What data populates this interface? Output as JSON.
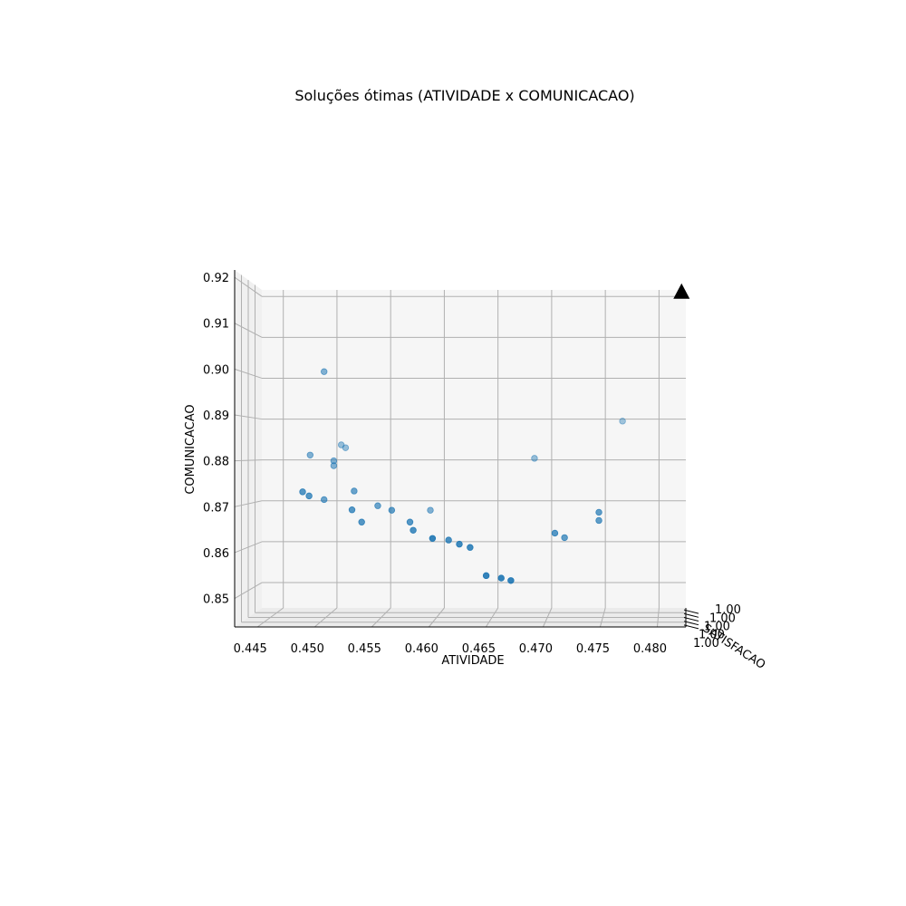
{
  "chart_data": {
    "type": "scatter",
    "projection": "3d",
    "title": "Soluções ótimas (ATIVIDADE x COMUNICACAO)",
    "xlabel": "ATIVIDADE",
    "ylabel": "COMUNICACAO",
    "zlabel": "SATISFACAO",
    "xlim": [
      0.443,
      0.4825
    ],
    "ylim": [
      0.8438,
      0.9216
    ],
    "x_ticks": [
      "0.445",
      "0.450",
      "0.455",
      "0.460",
      "0.465",
      "0.470",
      "0.475",
      "0.480"
    ],
    "y_ticks": [
      "0.85",
      "0.86",
      "0.87",
      "0.88",
      "0.89",
      "0.90",
      "0.91",
      "0.92"
    ],
    "z_ticks": [
      "1.00",
      "1.00",
      "1.00",
      "1.00",
      "1.00"
    ],
    "grid": true,
    "point_color": "#1f77b4",
    "marker_color": "#000000",
    "marker": {
      "x": 0.4821,
      "y": 0.9212,
      "shape": "triangle"
    },
    "points": [
      {
        "x": 0.4488,
        "y": 0.9016,
        "depth": 0.55
      },
      {
        "x": 0.4475,
        "y": 0.8812,
        "depth": 0.55
      },
      {
        "x": 0.4468,
        "y": 0.8722,
        "depth": 0.75
      },
      {
        "x": 0.4474,
        "y": 0.8712,
        "depth": 0.75
      },
      {
        "x": 0.4488,
        "y": 0.8703,
        "depth": 0.65
      },
      {
        "x": 0.4504,
        "y": 0.8837,
        "depth": 0.45
      },
      {
        "x": 0.4508,
        "y": 0.883,
        "depth": 0.45
      },
      {
        "x": 0.4497,
        "y": 0.8798,
        "depth": 0.55
      },
      {
        "x": 0.4497,
        "y": 0.8786,
        "depth": 0.55
      },
      {
        "x": 0.4516,
        "y": 0.8724,
        "depth": 0.65
      },
      {
        "x": 0.4514,
        "y": 0.8678,
        "depth": 0.75
      },
      {
        "x": 0.4523,
        "y": 0.8648,
        "depth": 0.75
      },
      {
        "x": 0.4538,
        "y": 0.8688,
        "depth": 0.65
      },
      {
        "x": 0.4551,
        "y": 0.8677,
        "depth": 0.7
      },
      {
        "x": 0.4568,
        "y": 0.8648,
        "depth": 0.75
      },
      {
        "x": 0.4571,
        "y": 0.8628,
        "depth": 0.8
      },
      {
        "x": 0.4587,
        "y": 0.8677,
        "depth": 0.55
      },
      {
        "x": 0.4589,
        "y": 0.8608,
        "depth": 0.9
      },
      {
        "x": 0.4604,
        "y": 0.8604,
        "depth": 0.8
      },
      {
        "x": 0.4614,
        "y": 0.8594,
        "depth": 0.85
      },
      {
        "x": 0.4624,
        "y": 0.8586,
        "depth": 0.85
      },
      {
        "x": 0.4639,
        "y": 0.8517,
        "depth": 0.9
      },
      {
        "x": 0.4653,
        "y": 0.8511,
        "depth": 0.9
      },
      {
        "x": 0.4662,
        "y": 0.8505,
        "depth": 0.9
      },
      {
        "x": 0.4684,
        "y": 0.8804,
        "depth": 0.45
      },
      {
        "x": 0.4703,
        "y": 0.8621,
        "depth": 0.75
      },
      {
        "x": 0.4712,
        "y": 0.861,
        "depth": 0.7
      },
      {
        "x": 0.4744,
        "y": 0.8672,
        "depth": 0.7
      },
      {
        "x": 0.4744,
        "y": 0.8652,
        "depth": 0.7
      },
      {
        "x": 0.4766,
        "y": 0.8895,
        "depth": 0.4
      }
    ]
  }
}
